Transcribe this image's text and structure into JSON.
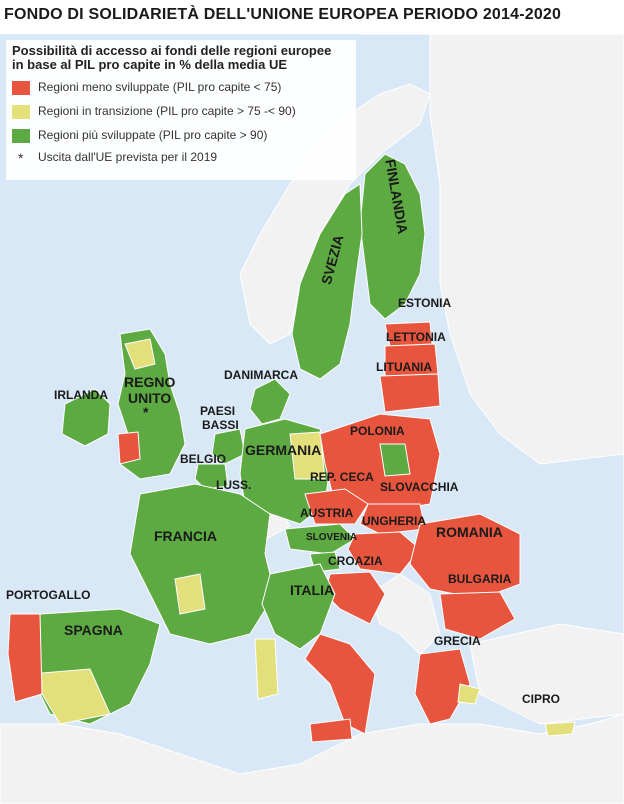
{
  "title": "FONDO DI SOLIDARIETÀ DELL'UNIONE EUROPEA PERIODO 2014-2020",
  "colors": {
    "sea": "#d9e8f6",
    "non_eu": "#f2f2f2",
    "less_developed": "#e8553e",
    "transition": "#e3e07c",
    "more_developed": "#5daa43",
    "border": "#ffffff"
  },
  "legend": {
    "heading_line1": "Possibilità di accesso ai fondi delle regioni europee",
    "heading_line2": "in base al PIL pro capite in % della media UE",
    "items": [
      {
        "label": "Regioni meno sviluppate (PIL pro capite < 75)",
        "color": "#e8553e"
      },
      {
        "label": "Regioni in transizione (PIL pro capite > 75 -< 90)",
        "color": "#e3e07c"
      },
      {
        "label": "Regioni più sviluppate (PIL pro capite > 90)",
        "color": "#5daa43"
      }
    ],
    "note_symbol": "*",
    "note": "Uscita dall'UE prevista per il 2019"
  },
  "countries": {
    "finlandia": "FINLANDIA",
    "svezia": "SVEZIA",
    "estonia": "ESTONIA",
    "lettonia": "LETTONIA",
    "lituania": "LITUANIA",
    "danimarca": "DANIMARCA",
    "irlanda": "IRLANDA",
    "regno_unito_1": "REGNO",
    "regno_unito_2": "UNITO",
    "uk_star": "*",
    "paesi_bassi_1": "PAESI",
    "paesi_bassi_2": "BASSI",
    "polonia": "POLONIA",
    "germania": "GERMANIA",
    "belgio": "BELGIO",
    "rep_ceca": "REP. CECA",
    "luss": "LUSS.",
    "slovacchia": "SLOVACCHIA",
    "austria": "AUSTRIA",
    "ungheria": "UNGHERIA",
    "romania": "ROMANIA",
    "francia": "FRANCIA",
    "slovenia": "SLOVENIA",
    "croazia": "CROAZIA",
    "bulgaria": "BULGARIA",
    "portogallo": "PORTOGALLO",
    "italia": "ITALIA",
    "spagna": "SPAGNA",
    "grecia": "GRECIA",
    "cipro": "CIPRO"
  }
}
